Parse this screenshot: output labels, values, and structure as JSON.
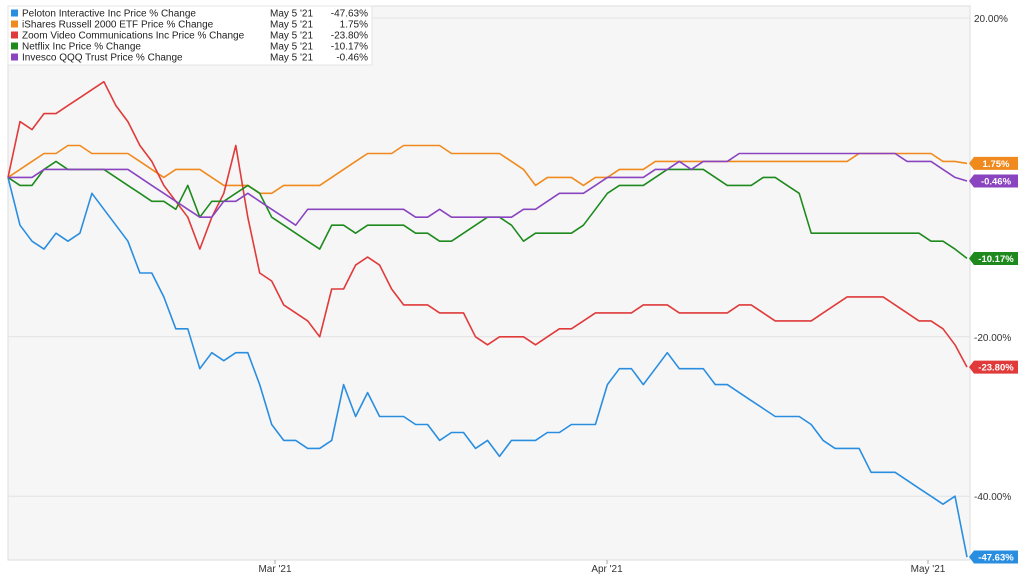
{
  "chart_data": {
    "type": "line",
    "title": "",
    "xlabel": "",
    "ylabel": "",
    "x_ticks": [
      "Mar '21",
      "Apr '21",
      "May '21"
    ],
    "y_ticks": [
      "20.00%",
      "-20.00%",
      "-40.00%"
    ],
    "ylim": [
      -48,
      21.5
    ],
    "grid": true,
    "legend_position": "top-left",
    "series": [
      {
        "name": "Peloton Interactive Inc Price % Change",
        "date": "May 5 '21",
        "last_label": "-47.63%",
        "end_label": "-47.63%",
        "color": "#2a8ee0",
        "values": [
          0,
          -6,
          -8,
          -9,
          -7,
          -8,
          -7,
          -2,
          -4,
          -6,
          -8,
          -12,
          -12,
          -15,
          -19,
          -19,
          -24,
          -22,
          -23,
          -22,
          -22,
          -26,
          -31,
          -33,
          -33,
          -34,
          -34,
          -33,
          -26,
          -30,
          -27,
          -30,
          -30,
          -30,
          -31,
          -31,
          -33,
          -32,
          -32,
          -34,
          -33,
          -35,
          -33,
          -33,
          -33,
          -32,
          -32,
          -31,
          -31,
          -31,
          -26,
          -24,
          -24,
          -26,
          -24,
          -22,
          -24,
          -24,
          -24,
          -26,
          -26,
          -27,
          -28,
          -29,
          -30,
          -30,
          -30,
          -31,
          -33,
          -34,
          -34,
          -34,
          -37,
          -37,
          -37,
          -38,
          -39,
          -40,
          -41,
          -40,
          -47.63
        ]
      },
      {
        "name": "iShares Russell 2000 ETF Price % Change",
        "date": "May 5 '21",
        "last_label": "1.75%",
        "end_label": "1.75%",
        "color": "#f08a1e",
        "values": [
          0,
          1,
          2,
          3,
          3,
          4,
          4,
          3,
          3,
          3,
          3,
          2,
          1,
          0,
          1,
          1,
          1,
          0,
          -1,
          -1,
          -1,
          -2,
          -2,
          -1,
          -1,
          -1,
          -1,
          0,
          1,
          2,
          3,
          3,
          3,
          4,
          4,
          4,
          4,
          3,
          3,
          3,
          3,
          3,
          2,
          1,
          -1,
          0,
          0,
          0,
          -1,
          0,
          0,
          1,
          1,
          1,
          2,
          2,
          2,
          2,
          2,
          2,
          2,
          2,
          2,
          2,
          2,
          2,
          2,
          2,
          2,
          2,
          2,
          3,
          3,
          3,
          3,
          3,
          3,
          3,
          2,
          2,
          1.75
        ]
      },
      {
        "name": "Zoom Video Communications Inc Price % Change",
        "date": "May 5 '21",
        "last_label": "-23.80%",
        "end_label": "-23.80%",
        "color": "#e03a3a",
        "values": [
          0,
          7,
          6,
          8,
          8,
          9,
          10,
          11,
          12,
          9,
          7,
          4,
          2,
          -1,
          -3,
          -5,
          -9,
          -5,
          -2,
          4,
          -5,
          -12,
          -13,
          -16,
          -17,
          -18,
          -20,
          -14,
          -14,
          -11,
          -10,
          -11,
          -14,
          -16,
          -16,
          -16,
          -17,
          -17,
          -17,
          -20,
          -21,
          -20,
          -20,
          -20,
          -21,
          -20,
          -19,
          -19,
          -18,
          -17,
          -17,
          -17,
          -17,
          -16,
          -16,
          -16,
          -17,
          -17,
          -17,
          -17,
          -17,
          -16,
          -16,
          -17,
          -18,
          -18,
          -18,
          -18,
          -17,
          -16,
          -15,
          -15,
          -15,
          -15,
          -16,
          -17,
          -18,
          -18,
          -19,
          -21,
          -23.8
        ]
      },
      {
        "name": "Netflix Inc Price % Change",
        "date": "May 5 '21",
        "last_label": "-10.17%",
        "end_label": "-10.17%",
        "color": "#1e8a1e",
        "values": [
          0,
          -1,
          -1,
          1,
          2,
          1,
          1,
          1,
          1,
          0,
          -1,
          -2,
          -3,
          -3,
          -4,
          -1,
          -5,
          -3,
          -3,
          -2,
          -1,
          -2,
          -5,
          -6,
          -7,
          -8,
          -9,
          -6,
          -6,
          -7,
          -6,
          -6,
          -6,
          -6,
          -7,
          -7,
          -8,
          -8,
          -7,
          -6,
          -5,
          -5,
          -6,
          -8,
          -7,
          -7,
          -7,
          -7,
          -6,
          -4,
          -2,
          -1,
          -1,
          -1,
          0,
          1,
          1,
          1,
          1,
          0,
          -1,
          -1,
          -1,
          0,
          0,
          -1,
          -2,
          -7,
          -7,
          -7,
          -7,
          -7,
          -7,
          -7,
          -7,
          -7,
          -7,
          -8,
          -8,
          -9,
          -10.17
        ]
      },
      {
        "name": "Invesco QQQ Trust Price % Change",
        "date": "May 5 '21",
        "last_label": "-0.46%",
        "end_label": "-0.46%",
        "color": "#8a44c0",
        "values": [
          0,
          0,
          0,
          1,
          1,
          1,
          1,
          1,
          1,
          1,
          1,
          0,
          -1,
          -2,
          -3,
          -4,
          -5,
          -5,
          -3,
          -3,
          -2,
          -3,
          -4,
          -5,
          -6,
          -4,
          -4,
          -4,
          -4,
          -4,
          -4,
          -4,
          -4,
          -4,
          -5,
          -5,
          -4,
          -5,
          -5,
          -5,
          -5,
          -5,
          -5,
          -4,
          -4,
          -3,
          -2,
          -2,
          -2,
          -1,
          0,
          0,
          0,
          0,
          1,
          1,
          2,
          1,
          2,
          2,
          2,
          3,
          3,
          3,
          3,
          3,
          3,
          3,
          3,
          3,
          3,
          3,
          3,
          3,
          3,
          2,
          2,
          2,
          1,
          0,
          -0.46
        ]
      }
    ]
  }
}
